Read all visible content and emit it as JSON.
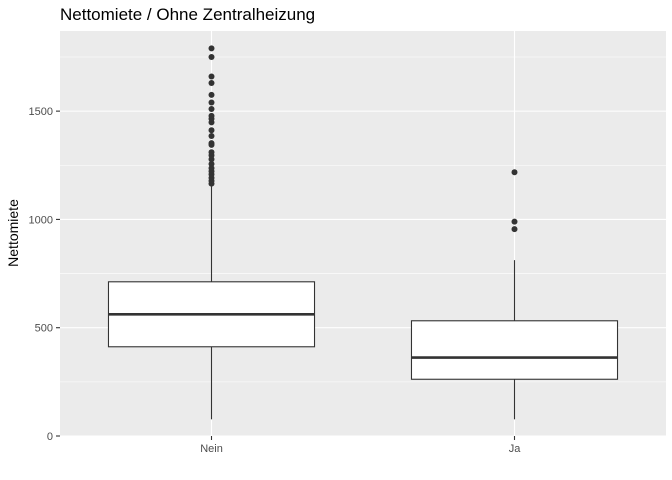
{
  "chart_data": {
    "type": "boxplot",
    "title": "Nettomiete / Ohne Zentralheizung",
    "xlabel": "",
    "ylabel": "Nettomiete",
    "ylim": [
      0,
      1870
    ],
    "yticks": [
      0,
      500,
      1000,
      1500
    ],
    "categories": [
      "Nein",
      "Ja"
    ],
    "boxes": [
      {
        "category": "Nein",
        "whisker_low": 77,
        "q1": 412,
        "median": 562,
        "q3": 712,
        "whisker_high": 1155,
        "outliers": [
          1165,
          1178,
          1192,
          1208,
          1222,
          1237,
          1256,
          1278,
          1296,
          1310,
          1344,
          1352,
          1385,
          1412,
          1448,
          1465,
          1478,
          1510,
          1540,
          1575,
          1630,
          1660,
          1750,
          1790
        ]
      },
      {
        "category": "Ja",
        "whisker_low": 77,
        "q1": 262,
        "median": 362,
        "q3": 532,
        "whisker_high": 812,
        "outliers": [
          955,
          990,
          1218
        ]
      }
    ],
    "grid": true,
    "legend": "none",
    "colors": {
      "panel": "#ebebeb",
      "grid": "#ffffff",
      "box_fill": "#ffffff",
      "box_stroke": "#333333",
      "point": "#333333"
    }
  }
}
